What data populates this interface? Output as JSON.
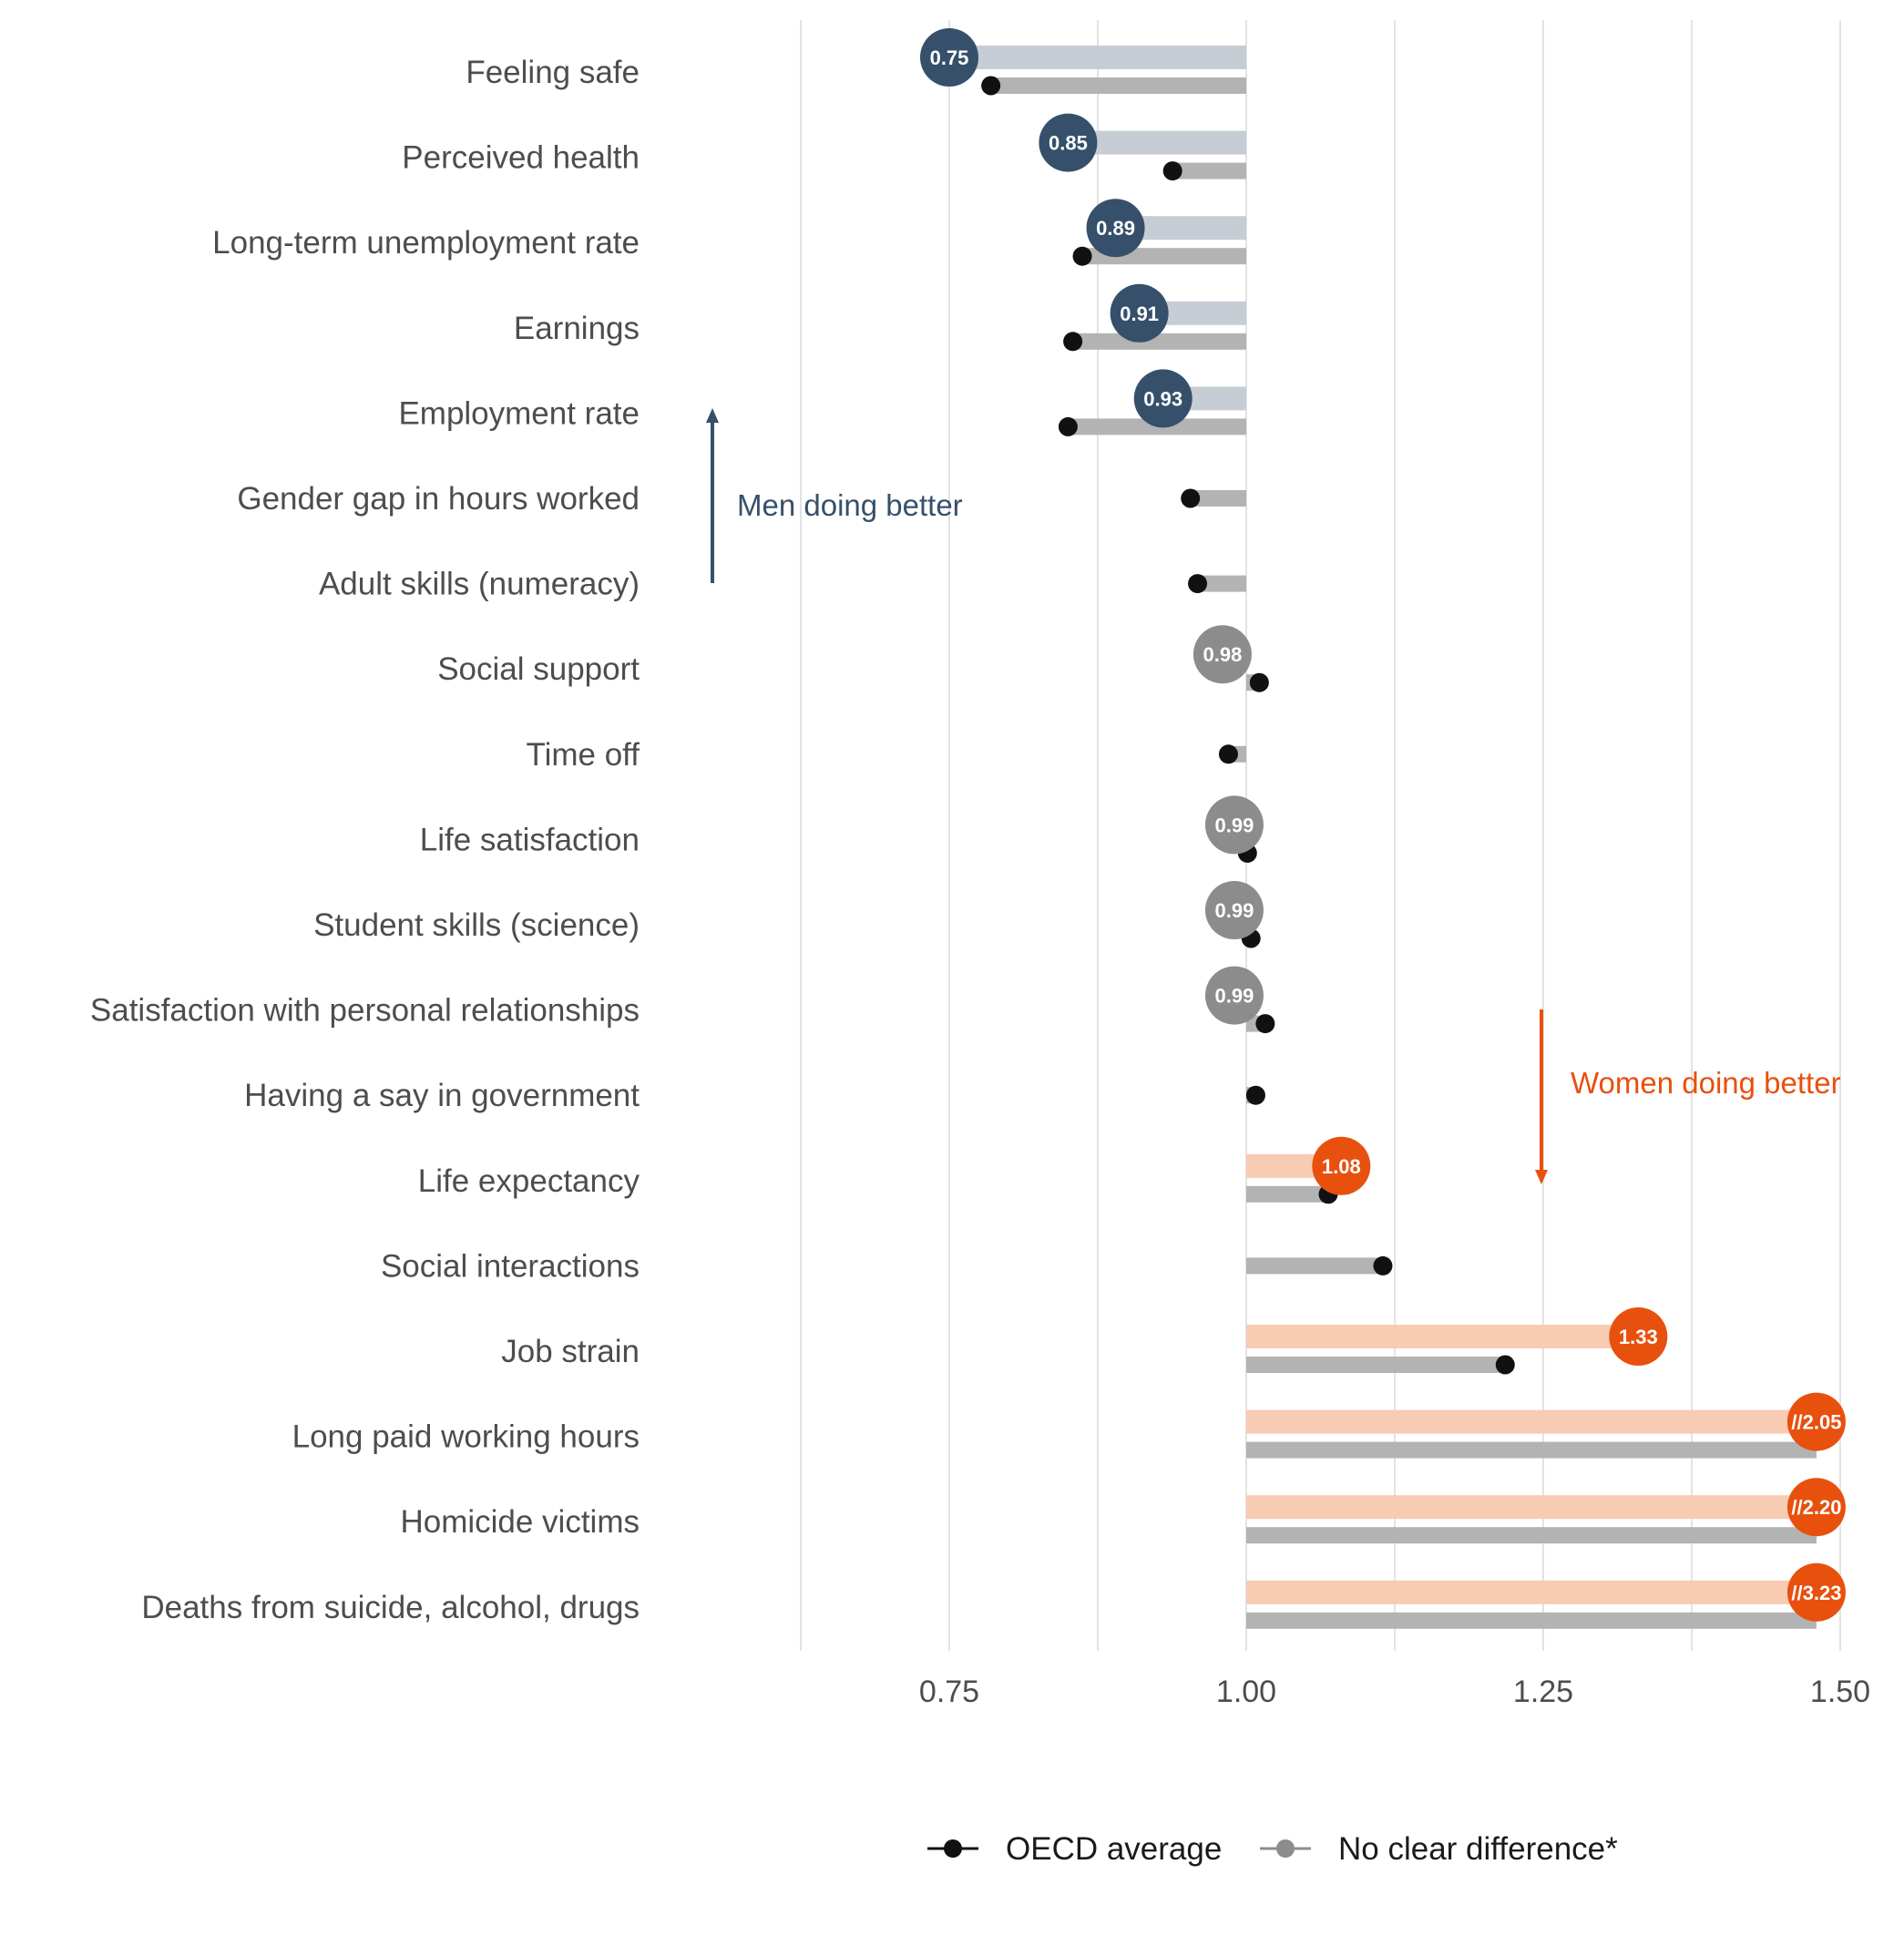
{
  "chart_data": {
    "type": "dumbbell",
    "xlim": [
      0.5,
      1.5
    ],
    "x_ticks": [
      0.75,
      1.0,
      1.25,
      1.5
    ],
    "x_tick_labels": [
      "0.75",
      "1.00",
      "1.25",
      "1.50"
    ],
    "reference_value": 1.0,
    "axis_break_value": 1.48,
    "categories": [
      {
        "label": "Feeling safe",
        "value": 0.75,
        "value_label": "0.75",
        "group": "men",
        "oecd": 0.785
      },
      {
        "label": "Perceived health",
        "value": 0.85,
        "value_label": "0.85",
        "group": "men",
        "oecd": 0.938
      },
      {
        "label": "Long-term unemployment rate",
        "value": 0.89,
        "value_label": "0.89",
        "group": "men",
        "oecd": 0.862
      },
      {
        "label": "Earnings",
        "value": 0.91,
        "value_label": "0.91",
        "group": "men",
        "oecd": 0.854
      },
      {
        "label": "Employment rate",
        "value": 0.93,
        "value_label": "0.93",
        "group": "men",
        "oecd": 0.85
      },
      {
        "label": "Gender gap in hours worked",
        "value": null,
        "value_label": "",
        "group": "none",
        "oecd": 0.953
      },
      {
        "label": "Adult skills (numeracy)",
        "value": null,
        "value_label": "",
        "group": "none",
        "oecd": 0.959
      },
      {
        "label": "Social support",
        "value": 0.98,
        "value_label": "0.98",
        "group": "neutral",
        "oecd": 1.011
      },
      {
        "label": "Time off",
        "value": null,
        "value_label": "",
        "group": "none",
        "oecd": 0.985
      },
      {
        "label": "Life satisfaction",
        "value": 0.99,
        "value_label": "0.99",
        "group": "neutral",
        "oecd": 1.001
      },
      {
        "label": "Student skills (science)",
        "value": 0.99,
        "value_label": "0.99",
        "group": "neutral",
        "oecd": 1.004
      },
      {
        "label": "Satisfaction with personal relationships",
        "value": 0.99,
        "value_label": "0.99",
        "group": "neutral",
        "oecd": 1.016
      },
      {
        "label": "Having a say in government",
        "value": null,
        "value_label": "",
        "group": "none",
        "oecd": 1.008
      },
      {
        "label": "Life expectancy ",
        "value": 1.08,
        "value_label": "1.08",
        "group": "women",
        "oecd": 1.069
      },
      {
        "label": "Social interactions",
        "value": null,
        "value_label": "",
        "group": "none",
        "oecd": 1.115
      },
      {
        "label": "Job strain",
        "value": 1.33,
        "value_label": "1.33",
        "group": "women",
        "oecd": 1.218
      },
      {
        "label": "Long paid working hours",
        "value": 2.05,
        "value_label": "//2.05",
        "group": "women",
        "oecd": null
      },
      {
        "label": "Homicide victims",
        "value": 2.2,
        "value_label": "//2.20",
        "group": "women",
        "oecd": null
      },
      {
        "label": "Deaths from suicide, alcohol, drugs",
        "value": 3.23,
        "value_label": "//3.23",
        "group": "women",
        "oecd": null
      }
    ],
    "annotations": {
      "men": "Men doing better",
      "women": "Women doing better"
    },
    "legend": {
      "placement": "bottom",
      "items": [
        {
          "label": "OECD average",
          "color": "#111111"
        },
        {
          "label": "No clear difference*",
          "color": "#8c8c8c"
        }
      ]
    },
    "colors": {
      "men": "#36506b",
      "men_bar": "#c7cdd5",
      "women": "#e8500e",
      "women_bar": "#f8cbb3",
      "neutral": "#8c8c8c",
      "oecd_bar": "#b3b3b3",
      "oecd_dot": "#111111",
      "grid": "#e3e3e3"
    }
  }
}
